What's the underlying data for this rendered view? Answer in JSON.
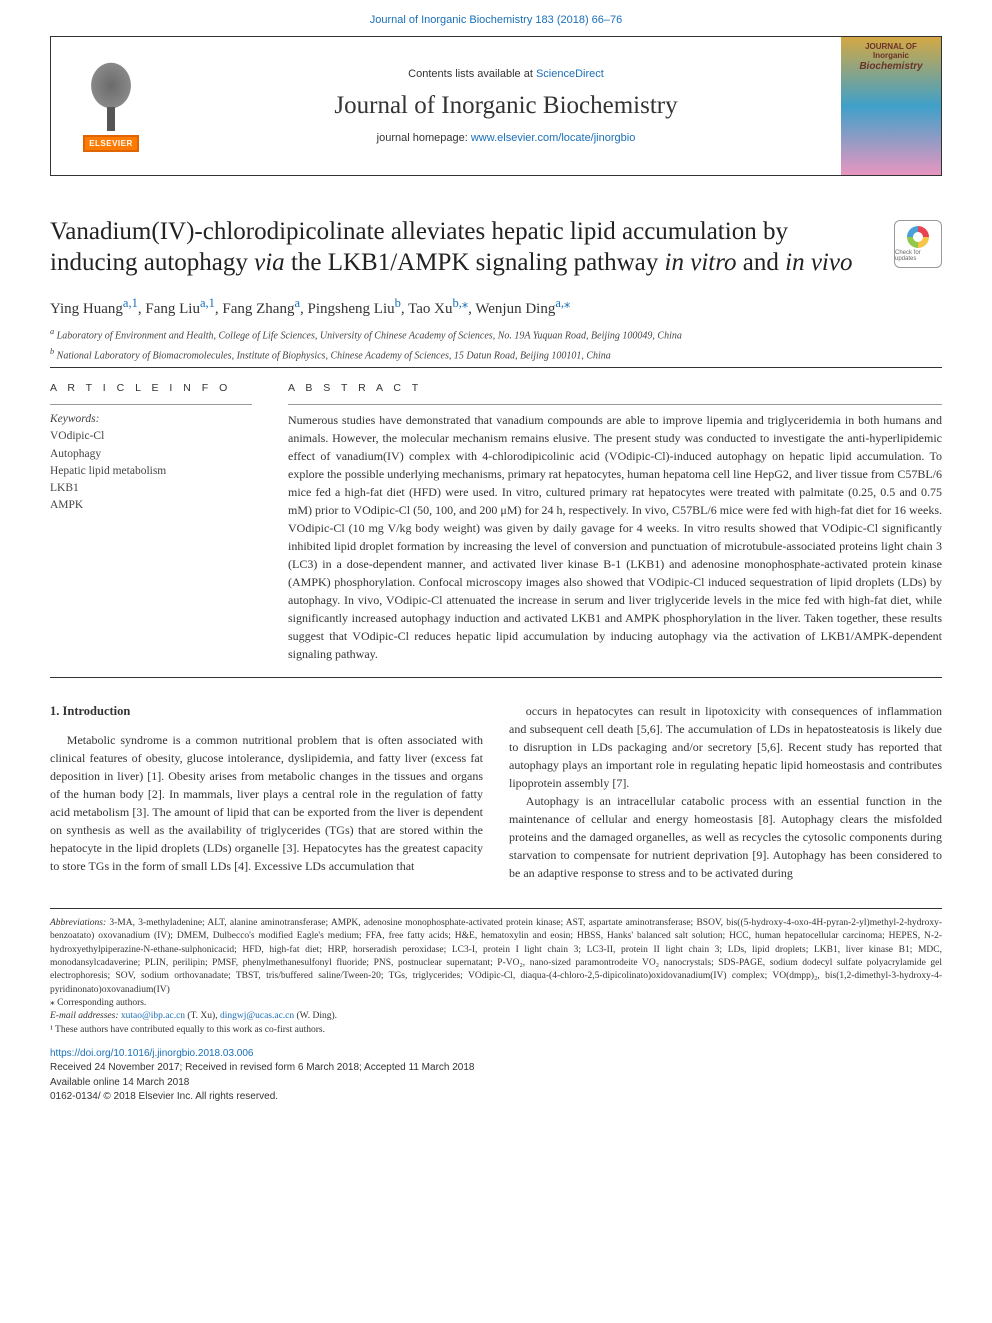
{
  "colors": {
    "link": "#1a6fb8",
    "text": "#333333",
    "border": "#333333",
    "elsevier_bg": "#ff7a00",
    "elsevier_border": "#e06500"
  },
  "top": {
    "citation": "Journal of Inorganic Biochemistry 183 (2018) 66–76"
  },
  "header": {
    "elsevier": "ELSEVIER",
    "contents_prefix": "Contents lists available at ",
    "contents_link": "ScienceDirect",
    "journal": "Journal of Inorganic Biochemistry",
    "homepage_prefix": "journal homepage: ",
    "homepage_link": "www.elsevier.com/locate/jinorgbio",
    "cover_top": "JOURNAL OF",
    "cover_main": "Inorganic",
    "cover_sub": "Biochemistry"
  },
  "title": {
    "line1": "Vanadium(IV)-chlorodipicolinate alleviates hepatic lipid accumulation by",
    "line2_a": "inducing autophagy ",
    "line2_via": "via",
    "line2_b": " the LKB1/AMPK signaling pathway ",
    "line2_invitro": "in vitro",
    "line2_and": " and ",
    "line2_invivo": "in vivo"
  },
  "check_badge": "Check for updates",
  "authors": {
    "list": "Ying Huang",
    "a1_sup": "a,1",
    "a2": ", Fang Liu",
    "a2_sup": "a,1",
    "a3": ", Fang Zhang",
    "a3_sup": "a",
    "a4": ", Pingsheng Liu",
    "a4_sup": "b",
    "a5": ", Tao Xu",
    "a5_sup": "b,⁎",
    "a6": ", Wenjun Ding",
    "a6_sup": "a,⁎"
  },
  "affiliations": {
    "a": "Laboratory of Environment and Health, College of Life Sciences, University of Chinese Academy of Sciences, No. 19A Yuquan Road, Beijing 100049, China",
    "b": "National Laboratory of Biomacromolecules, Institute of Biophysics, Chinese Academy of Sciences, 15 Datun Road, Beijing 100101, China"
  },
  "info": {
    "label": "A R T I C L E  I N F O",
    "kw_label": "Keywords:",
    "keywords": [
      "VOdipic-Cl",
      "Autophagy",
      "Hepatic lipid metabolism",
      "LKB1",
      "AMPK"
    ]
  },
  "abstract": {
    "label": "A B S T R A C T",
    "text": "Numerous studies have demonstrated that vanadium compounds are able to improve lipemia and triglyceridemia in both humans and animals. However, the molecular mechanism remains elusive. The present study was conducted to investigate the anti-hyperlipidemic effect of vanadium(IV) complex with 4-chlorodipicolinic acid (VOdipic-Cl)-induced autophagy on hepatic lipid accumulation. To explore the possible underlying mechanisms, primary rat hepatocytes, human hepatoma cell line HepG2, and liver tissue from C57BL/6 mice fed a high-fat diet (HFD) were used. In vitro, cultured primary rat hepatocytes were treated with palmitate (0.25, 0.5 and 0.75 mM) prior to VOdipic-Cl (50, 100, and 200 μM) for 24 h, respectively. In vivo, C57BL/6 mice were fed with high-fat diet for 16 weeks. VOdipic-Cl (10 mg V/kg body weight) was given by daily gavage for 4 weeks. In vitro results showed that VOdipic-Cl significantly inhibited lipid droplet formation by increasing the level of conversion and punctuation of microtubule-associated proteins light chain 3 (LC3) in a dose-dependent manner, and activated liver kinase B-1 (LKB1) and adenosine monophosphate-activated protein kinase (AMPK) phosphorylation. Confocal microscopy images also showed that VOdipic-Cl induced sequestration of lipid droplets (LDs) by autophagy. In vivo, VOdipic-Cl attenuated the increase in serum and liver triglyceride levels in the mice fed with high-fat diet, while significantly increased autophagy induction and activated LKB1 and AMPK phosphorylation in the liver. Taken together, these results suggest that VOdipic-Cl reduces hepatic lipid accumulation by inducing autophagy via the activation of LKB1/AMPK-dependent signaling pathway."
  },
  "intro": {
    "heading": "1. Introduction",
    "p1": "Metabolic syndrome is a common nutritional problem that is often associated with clinical features of obesity, glucose intolerance, dyslipidemia, and fatty liver (excess fat deposition in liver) [1]. Obesity arises from metabolic changes in the tissues and organs of the human body [2]. In mammals, liver plays a central role in the regulation of fatty acid metabolism [3]. The amount of lipid that can be exported from the liver is dependent on synthesis as well as the availability of triglycerides (TGs) that are stored within the hepatocyte in the lipid droplets (LDs) organelle [3]. Hepatocytes has the greatest capacity to store TGs in the form of small LDs [4]. Excessive LDs accumulation that",
    "p2": "occurs in hepatocytes can result in lipotoxicity with consequences of inflammation and subsequent cell death [5,6]. The accumulation of LDs in hepatosteatosis is likely due to disruption in LDs packaging and/or secretory [5,6]. Recent study has reported that autophagy plays an important role in regulating hepatic lipid homeostasis and contributes lipoprotein assembly [7].",
    "p3": "Autophagy is an intracellular catabolic process with an essential function in the maintenance of cellular and energy homeostasis [8]. Autophagy clears the misfolded proteins and the damaged organelles, as well as recycles the cytosolic components during starvation to compensate for nutrient deprivation [9]. Autophagy has been considered to be an adaptive response to stress and to be activated during"
  },
  "footnotes": {
    "abbr_label": "Abbreviations:",
    "abbr": " 3-MA, 3-methyladenine; ALT, alanine aminotransferase; AMPK, adenosine monophosphate-activated protein kinase; AST, aspartate aminotransferase; BSOV, bis((5-hydroxy-4-oxo-4H-pyran-2-yl)methyl-2-hydroxy-benzoatato) oxovanadium (IV); DMEM, Dulbecco's modified Eagle's medium; FFA, free fatty acids; H&E, hematoxylin and eosin; HBSS, Hanks' balanced salt solution; HCC, human hepatocellular carcinoma; HEPES, N-2-hydroxyethylpiperazine-N-ethane-sulphonicacid; HFD, high-fat diet; HRP, horseradish peroxidase; LC3-I, protein I light chain 3; LC3-II, protein II light chain 3; LDs, lipid droplets; LKB1, liver kinase B1; MDC, monodansylcadaverine; PLIN, perilipin; PMSF, phenylmethanesulfonyl fluoride; PNS, postnuclear supernatant; P-VO₂, nano-sized paramontrodeite VO₂ nanocrystals; SDS-PAGE, sodium dodecyl sulfate polyacrylamide gel electrophoresis; SOV, sodium orthovanadate; TBST, tris/buffered saline/Tween-20; TGs, triglycerides; VOdipic-Cl, diaqua-(4-chloro-2,5-dipicolinato)oxidovanadium(IV) complex; VO(dmpp)₂, bis(1,2-dimethyl-3-hydroxy-4-pyridinonato)oxovanadium(IV)",
    "corr": "⁎ Corresponding authors.",
    "email_label": "E-mail addresses: ",
    "email1": "xutao@ibp.ac.cn",
    "email1_who": " (T. Xu), ",
    "email2": "dingwj@ucas.ac.cn",
    "email2_who": " (W. Ding).",
    "equal": "¹ These authors have contributed equally to this work as co-first authors."
  },
  "footer": {
    "doi": "https://doi.org/10.1016/j.jinorgbio.2018.03.006",
    "dates": "Received 24 November 2017; Received in revised form 6 March 2018; Accepted 11 March 2018",
    "online": "Available online 14 March 2018",
    "copyright": "0162-0134/ © 2018 Elsevier Inc. All rights reserved."
  }
}
